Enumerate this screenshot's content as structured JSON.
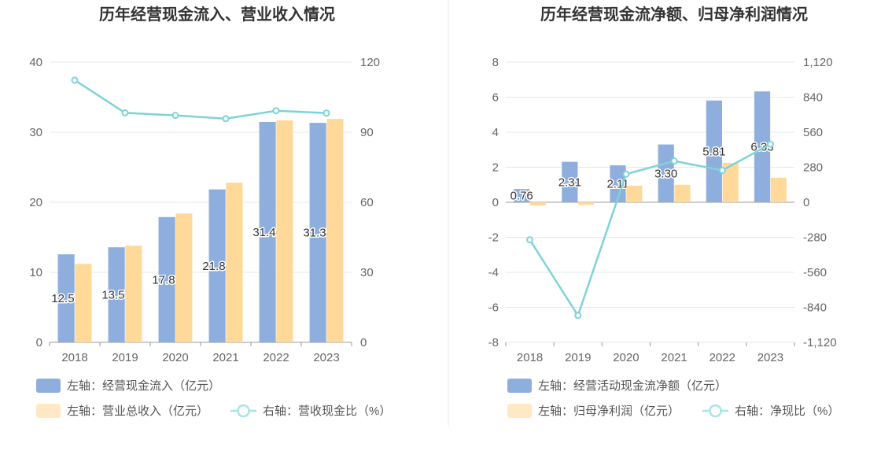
{
  "chart_data": [
    {
      "type": "bar",
      "title": "历年经营现金流入、营业收入情况",
      "categories": [
        "2018",
        "2019",
        "2020",
        "2021",
        "2022",
        "2023"
      ],
      "y_left": {
        "range": [
          0,
          40
        ],
        "ticks": [
          "0",
          "10",
          "20",
          "30",
          "40"
        ]
      },
      "y_right": {
        "range": [
          0,
          120
        ],
        "ticks": [
          "0",
          "30",
          "60",
          "90",
          "120"
        ]
      },
      "grid": true,
      "legend_position": "bottom-left",
      "series": [
        {
          "name": "左轴：经营现金流入（亿元）",
          "type": "bar",
          "axis": "left",
          "color": "#8eaedd",
          "values": [
            12.57,
            13.57,
            17.89,
            21.84,
            31.46,
            31.34
          ],
          "labels": [
            "12.57",
            "13.57",
            "17.89",
            "21.84",
            "31.46",
            "31.34"
          ]
        },
        {
          "name": "左轴：营业总收入（亿元）",
          "type": "bar",
          "axis": "left",
          "color": "#ffd99a",
          "values": [
            11.2,
            13.8,
            18.4,
            22.8,
            31.7,
            31.9
          ]
        },
        {
          "name": "右轴：营收现金比（%）",
          "type": "line",
          "axis": "right",
          "color": "#7fd3d6",
          "values": [
            112.3,
            98.3,
            97.2,
            95.8,
            99.2,
            98.2
          ]
        }
      ]
    },
    {
      "type": "bar",
      "title": "历年经营现金流净额、归母净利润情况",
      "categories": [
        "2018",
        "2019",
        "2020",
        "2021",
        "2022",
        "2023"
      ],
      "y_left": {
        "range": [
          -8,
          8
        ],
        "ticks": [
          "-8",
          "-6",
          "-4",
          "-2",
          "0",
          "2",
          "4",
          "6",
          "8"
        ]
      },
      "y_right": {
        "range": [
          -1120,
          1120
        ],
        "ticks": [
          "-1,120",
          "-840",
          "-560",
          "-280",
          "0",
          "280",
          "560",
          "840",
          "1,120"
        ]
      },
      "grid": true,
      "legend_position": "bottom-left",
      "series": [
        {
          "name": "左轴：经营活动现金流净额（亿元）",
          "type": "bar",
          "axis": "left",
          "color": "#8eaedd",
          "values": [
            0.76,
            2.31,
            2.11,
            3.3,
            5.81,
            6.33
          ],
          "labels": [
            "0.76",
            "2.31",
            "2.11",
            "3.30",
            "5.81",
            "6.33"
          ]
        },
        {
          "name": "左轴：归母净利润（亿元）",
          "type": "bar",
          "axis": "left",
          "color": "#ffd99a",
          "values": [
            -0.18,
            -0.15,
            0.95,
            1.0,
            2.25,
            1.4
          ]
        },
        {
          "name": "右轴：净现比（%）",
          "type": "line",
          "axis": "right",
          "color": "#7fd3d6",
          "values": [
            -300,
            -905,
            225,
            330,
            255,
            465
          ]
        }
      ]
    }
  ]
}
